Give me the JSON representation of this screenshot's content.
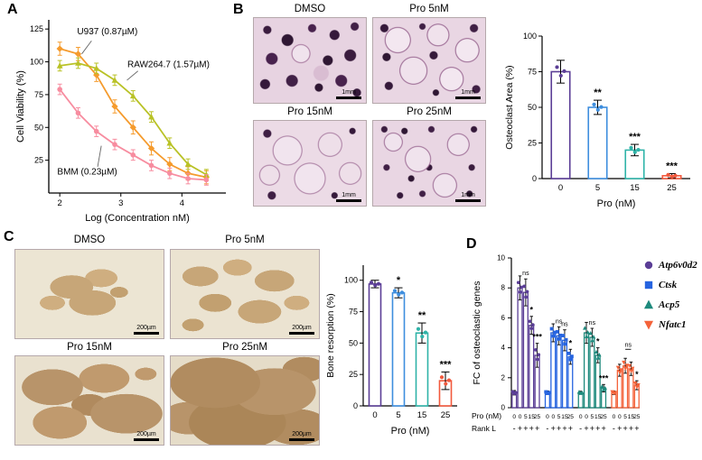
{
  "panels": {
    "A": "A",
    "B": "B",
    "C": "C",
    "D": "D"
  },
  "panelB": {
    "images": [
      {
        "title": "DMSO",
        "scale": "1mm"
      },
      {
        "title": "Pro 5nM",
        "scale": "1mm"
      },
      {
        "title": "Pro 15nM",
        "scale": "1mm"
      },
      {
        "title": "Pro 25nM",
        "scale": "1mm"
      }
    ]
  },
  "panelC": {
    "images": [
      {
        "title": "DMSO",
        "scale": "200µm"
      },
      {
        "title": "Pro 5nM",
        "scale": "200µm"
      },
      {
        "title": "Pro 15nM",
        "scale": "200µm"
      },
      {
        "title": "Pro 25nM",
        "scale": "200µm"
      }
    ]
  },
  "chart_data": [
    {
      "panel": "A",
      "type": "line",
      "xlabel": "Log (Concentration nM)",
      "ylabel": "Cell Viability (%)",
      "xlim": [
        1.82,
        4.72
      ],
      "ylim": [
        0,
        132
      ],
      "xticks": [
        2,
        3,
        4
      ],
      "yticks": [
        25,
        50,
        75,
        100,
        125
      ],
      "series": [
        {
          "name": "U937 (0.87µM)",
          "color": "#F59B2D",
          "marker": "diamond",
          "err": 5,
          "x": [
            2,
            2.3,
            2.6,
            2.9,
            3.2,
            3.5,
            3.8,
            4.1,
            4.4
          ],
          "y": [
            110,
            106,
            90,
            66,
            50,
            34,
            22,
            15,
            12
          ]
        },
        {
          "name": "RAW264.7 (1.57µM)",
          "color": "#B9C226",
          "marker": "triangle",
          "err": 4,
          "x": [
            2,
            2.3,
            2.6,
            2.9,
            3.2,
            3.5,
            3.8,
            4.1,
            4.4
          ],
          "y": [
            97,
            99,
            95,
            86,
            74,
            58,
            38,
            22,
            14
          ]
        },
        {
          "name": "BMM (0.23µM)",
          "color": "#F78DA0",
          "marker": "circle",
          "err": 4,
          "x": [
            2,
            2.3,
            2.6,
            2.9,
            3.2,
            3.5,
            3.8,
            4.1,
            4.4
          ],
          "y": [
            79,
            61,
            47,
            37,
            29,
            21,
            15,
            11,
            10
          ]
        }
      ],
      "annotations": [
        {
          "text": "U937 (0.87µM)",
          "x": 2.78,
          "y": 121,
          "line": [
            2.52,
            116,
            2.36,
            106
          ]
        },
        {
          "text": "RAW264.7 (1.57µM)",
          "x": 3.78,
          "y": 96,
          "line": [
            3.28,
            93,
            3.1,
            86
          ]
        },
        {
          "text": "BMM (0.23µM)",
          "x": 2.45,
          "y": 14,
          "line": [
            2.62,
            20,
            2.68,
            36
          ]
        }
      ]
    },
    {
      "panel": "B",
      "type": "bar",
      "xlabel": "Pro (nM)",
      "ylabel": "Osteoclast Area (%)",
      "categories": [
        "0",
        "5",
        "15",
        "25"
      ],
      "values": [
        75,
        50,
        20,
        2
      ],
      "errors": [
        8,
        5,
        4,
        1.5
      ],
      "sig": [
        "",
        "**",
        "***",
        "***"
      ],
      "colors": [
        "#5B3E96",
        "#3E8EDE",
        "#2FB3A8",
        "#F2593D"
      ],
      "ylim": [
        0,
        100
      ],
      "yticks": [
        0,
        25,
        50,
        75,
        100
      ]
    },
    {
      "panel": "C",
      "type": "bar",
      "xlabel": "Pro (nM)",
      "ylabel": "Bone resorption (%)",
      "categories": [
        "0",
        "5",
        "15",
        "25"
      ],
      "values": [
        97,
        90,
        58,
        20
      ],
      "errors": [
        3,
        4,
        8,
        7
      ],
      "sig": [
        "",
        "*",
        "**",
        "***"
      ],
      "colors": [
        "#5B3E96",
        "#3E8EDE",
        "#2FB3A8",
        "#F2593D"
      ],
      "ylim": [
        0,
        112
      ],
      "yticks": [
        0,
        25,
        50,
        75,
        100
      ]
    },
    {
      "panel": "D",
      "type": "grouped-bar",
      "ylabel": "FC of osteoclastic genes",
      "ylim": [
        0,
        10
      ],
      "yticks": [
        0,
        2,
        4,
        6,
        8,
        10
      ],
      "row_labels": [
        "Pro (nM)",
        "Rank L"
      ],
      "pro_row": [
        "0",
        "0",
        "5",
        "15",
        "25"
      ],
      "rankl_row": [
        "-",
        "+",
        "+",
        "+",
        "+"
      ],
      "groups": [
        {
          "name": "Atp6v0d2",
          "color": "#5B3E96",
          "marker": "circle",
          "values": [
            1,
            8,
            7.7,
            5.5,
            3.5
          ],
          "errors": [
            0.15,
            0.8,
            0.9,
            0.6,
            0.8
          ],
          "sig": [
            "",
            "",
            "ns",
            "*",
            "***"
          ]
        },
        {
          "name": "Ctsk",
          "color": "#2664E0",
          "marker": "square",
          "values": [
            1,
            5,
            4.8,
            4.5,
            3.4
          ],
          "errors": [
            0.12,
            0.6,
            0.6,
            0.7,
            0.5
          ],
          "sig": [
            "",
            "",
            "ns",
            "ns",
            "*"
          ]
        },
        {
          "name": "Acp5",
          "color": "#1E8A7D",
          "marker": "triangle",
          "values": [
            1,
            5,
            4.7,
            3.5,
            1.3
          ],
          "errors": [
            0.1,
            0.7,
            0.6,
            0.5,
            0.25
          ],
          "sig": [
            "",
            "",
            "ns",
            "*",
            "***"
          ]
        },
        {
          "name": "Nfatc1",
          "color": "#F4633A",
          "marker": "triangle-down",
          "values": [
            1,
            2.5,
            2.8,
            2.6,
            1.5
          ],
          "errors": [
            0.12,
            0.4,
            0.5,
            0.45,
            0.3
          ],
          "sig": [
            "",
            "",
            "",
            "",
            "*"
          ],
          "bracket": {
            "from": 2,
            "to": 3,
            "label": "ns"
          }
        }
      ]
    }
  ]
}
